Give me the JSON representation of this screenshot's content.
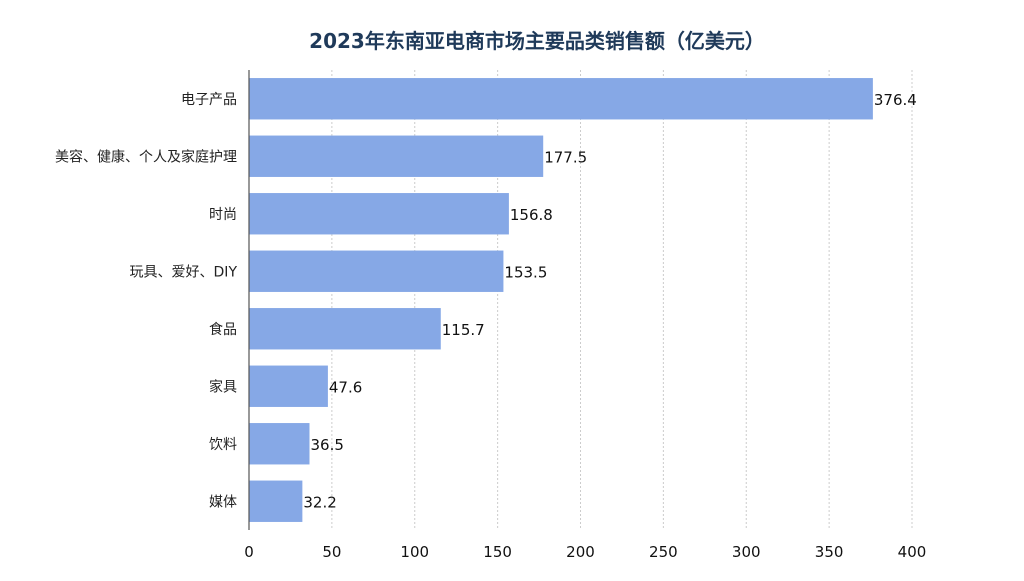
{
  "chart_data": {
    "type": "bar",
    "orientation": "horizontal",
    "title": "2023年东南亚电商市场主要品类销售额（亿美元）",
    "categories": [
      "电子产品",
      "美容、健康、个人及家庭护理",
      "时尚",
      "玩具、爱好、DIY",
      "食品",
      "家具",
      "饮料",
      "媒体"
    ],
    "values": [
      376.4,
      177.5,
      156.8,
      153.5,
      115.7,
      47.6,
      36.5,
      32.2
    ],
    "value_labels": [
      "376.4",
      "177.5",
      "156.8",
      "153.5",
      "115.7",
      "47.6",
      "36.5",
      "32.2"
    ],
    "xlim": [
      0,
      400
    ],
    "xticks": [
      0,
      50,
      100,
      150,
      200,
      250,
      300,
      350,
      400
    ],
    "xlabel": "",
    "ylabel": "",
    "grid": true,
    "bar_color": "#86a8e6",
    "title_color": "#1f3a5a"
  }
}
